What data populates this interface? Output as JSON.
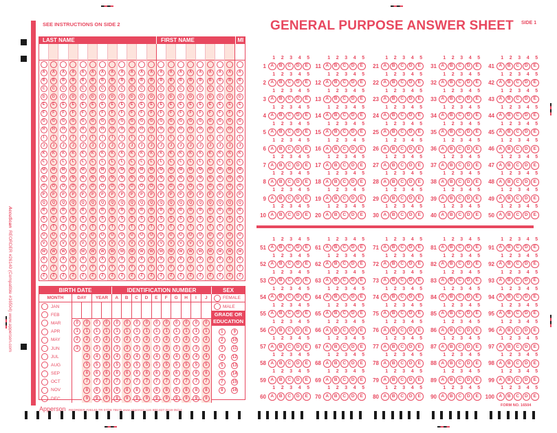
{
  "sheet": {
    "title": "GENERAL PURPOSE ANSWER SHEET",
    "side": "SIDE 1",
    "instructions": "SEE INSTRUCTIONS ON SIDE 2",
    "form_no": "FORM NO. 16504",
    "side_text": "REORDER #26140 (Compatible #16504) www.apperson.com",
    "brand_side": "AccuScan",
    "footer_brand": "Apperson",
    "footer_reorder": "REORDER #26140-TR 07/08 75575   www.apperson.com  800.827.0019        05/14",
    "brand_color": "#e8485f"
  },
  "name_grid": {
    "last_name_label": "LAST NAME",
    "first_name_label": "FIRST NAME",
    "mi_label": "MI",
    "last_cols": 12,
    "first_cols": 8,
    "mi_cols": 1,
    "letters": [
      "",
      "A",
      "B",
      "C",
      "D",
      "E",
      "F",
      "G",
      "H",
      "I",
      "J",
      "K",
      "L",
      "M",
      "N",
      "O",
      "P",
      "Q",
      "R",
      "S",
      "T",
      "U",
      "V",
      "W",
      "X",
      "Y",
      "Z"
    ]
  },
  "birth_date": {
    "label": "BIRTH DATE",
    "month_label": "MONTH",
    "day_label": "DAY",
    "year_label": "YEAR",
    "months": [
      "JAN",
      "FEB",
      "MAR",
      "APR",
      "MAY",
      "JUN",
      "JUL",
      "AUG",
      "SEP",
      "OCT",
      "NOV",
      "DEC"
    ]
  },
  "identification": {
    "label": "IDENTIFICATION NUMBER",
    "columns": [
      "A",
      "B",
      "C",
      "D",
      "E",
      "F",
      "G",
      "H",
      "I",
      "J"
    ]
  },
  "sex": {
    "label": "SEX",
    "options": [
      "FEMALE",
      "MALE"
    ]
  },
  "grade": {
    "label_line1": "GRADE OR",
    "label_line2": "EDUCATION",
    "col1": [
      "1",
      "2",
      "3",
      "4",
      "5",
      "6",
      "7",
      "8"
    ],
    "col2": [
      "9",
      "10",
      "11",
      "12",
      "13",
      "14",
      "15",
      "16"
    ]
  },
  "answers": {
    "choice_numbers": [
      "1",
      "2",
      "3",
      "4",
      "5"
    ],
    "choice_letters": [
      "A",
      "B",
      "C",
      "D",
      "E"
    ],
    "total_questions": 100
  }
}
